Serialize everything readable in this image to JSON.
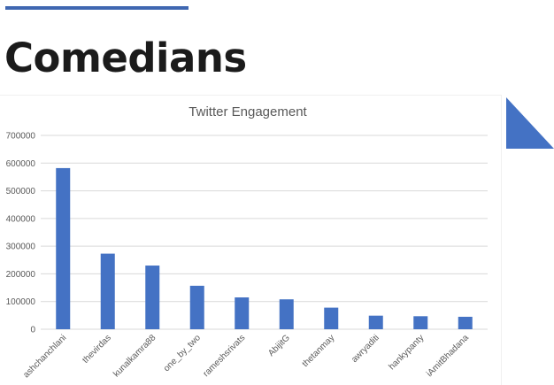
{
  "slide": {
    "title": "Comedians",
    "accent_color": "#3f67b1",
    "title_color": "#1b1b1b"
  },
  "chart_data": {
    "type": "bar",
    "title": "Twitter Engagement",
    "xlabel": "",
    "ylabel": "",
    "categories": [
      "ashchanchlani",
      "thevirdas",
      "kunalkamra88",
      "one_by_two",
      "rameshsrivats",
      "AbijitG",
      "thetanmay",
      "awryaditi",
      "hankypanty",
      "iAmitBhadana"
    ],
    "series": [
      {
        "values": [
          582000,
          273000,
          230000,
          157000,
          115000,
          108000,
          78000,
          49000,
          47000,
          45000
        ]
      }
    ],
    "ylim": [
      0,
      700000
    ],
    "yticks": [
      0,
      100000,
      200000,
      300000,
      400000,
      500000,
      600000,
      700000
    ],
    "grid": true,
    "legend": "none",
    "bar_color": "#4472c4",
    "grid_color": "#d9d9d9",
    "label_color": "#595959"
  }
}
